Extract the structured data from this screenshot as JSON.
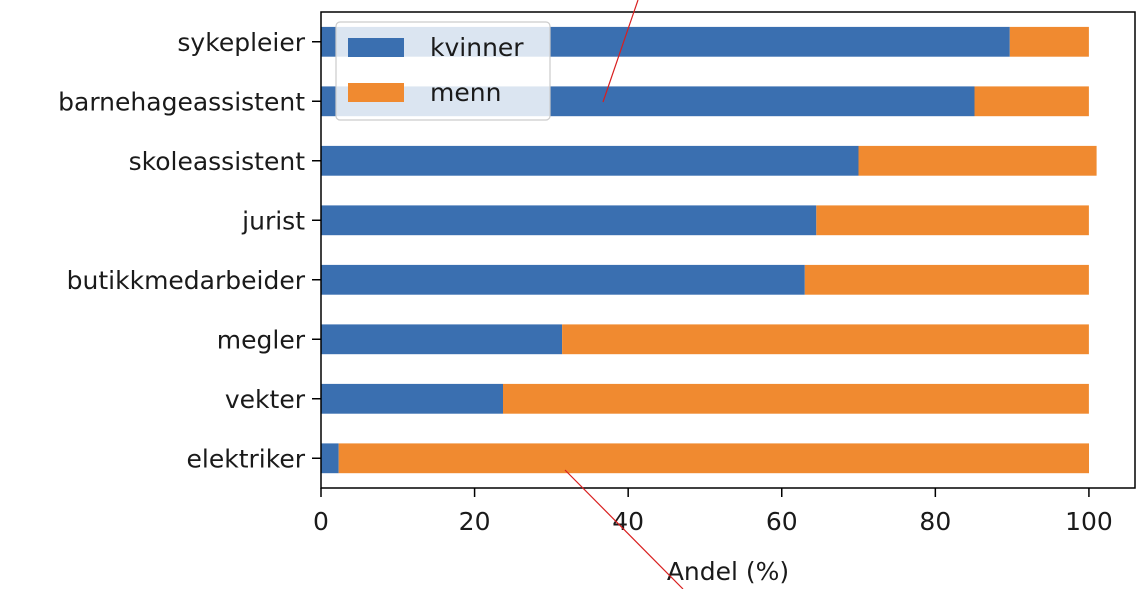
{
  "chart_data": {
    "type": "bar",
    "orientation": "horizontal",
    "stacked": true,
    "categories": [
      "sykepleier",
      "barnehageassistent",
      "skoleassistent",
      "jurist",
      "butikkmedarbeider",
      "megler",
      "vekter",
      "elektriker"
    ],
    "series": [
      {
        "name": "kvinner",
        "values": [
          89.7,
          85.1,
          70.0,
          64.5,
          63.0,
          31.4,
          23.7,
          2.3
        ],
        "color": "#3a6fb0"
      },
      {
        "name": "menn",
        "values": [
          10.3,
          14.9,
          31.0,
          35.5,
          37.0,
          68.6,
          76.3,
          97.7
        ],
        "color": "#f08a30"
      }
    ],
    "title": "",
    "xlabel": "Andel (%)",
    "ylabel": "",
    "xlim": [
      0,
      106
    ],
    "xticks": [
      "0",
      "20",
      "40",
      "60",
      "80",
      "100"
    ],
    "grid": false,
    "legend_position": "top-left"
  }
}
